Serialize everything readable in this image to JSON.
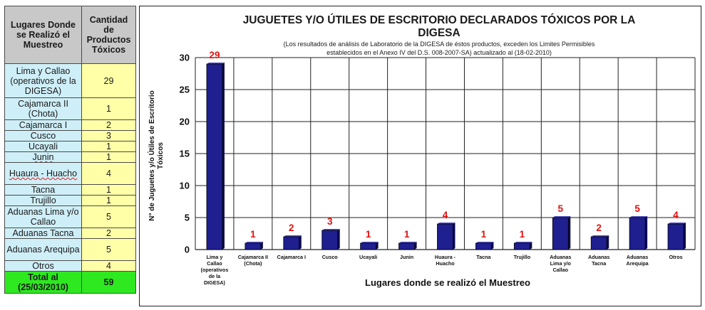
{
  "table": {
    "header_place": "Lugares Donde se Realizó el Muestreo",
    "header_qty": "Cantidad de Productos Tóxicos",
    "rows": [
      {
        "place": "Lima y Callao (operativos de la DIGESA)",
        "qty": "29"
      },
      {
        "place": "Cajamarca II (Chota)",
        "qty": "1"
      },
      {
        "place": "Cajamarca I",
        "qty": "2"
      },
      {
        "place": "Cusco",
        "qty": "3"
      },
      {
        "place": "Ucayali",
        "qty": "1"
      },
      {
        "place": "Junin",
        "qty": "1"
      },
      {
        "place": "Huaura - Huacho",
        "qty": "4"
      },
      {
        "place": "Tacna",
        "qty": "1"
      },
      {
        "place": "Trujillo",
        "qty": "1"
      },
      {
        "place": "Aduanas Lima y/o Callao",
        "qty": "5"
      },
      {
        "place": "Aduanas Tacna",
        "qty": "2"
      },
      {
        "place": "Aduanas Arequipa",
        "qty": "5"
      },
      {
        "place": "Otros",
        "qty": "4"
      }
    ],
    "total_label": "Total al (25/03/2010)",
    "total_value": "59"
  },
  "colors": {
    "header_bg": "#c8c8c8",
    "place_bg": "#cfeff8",
    "qty_bg": "#ffffa8",
    "total_bg": "#2ee820",
    "bar_fill": "#1f1f8f",
    "data_label": "#e01010"
  },
  "chart_data": {
    "type": "bar",
    "title_line1": "JUGUETES Y/O ÚTILES DE ESCRITORIO DECLARADOS TÓXICOS POR LA",
    "title_line2": "DIGESA",
    "subtitle_line1": "(Los resultados de análisis de Laboratorio de la DIGESA de éstos productos, exceden los Limites Permisibles",
    "subtitle_line2": "establecidos en el Anexo IV del D.S. 008-2007-SA) actualizado al (18-02-2010)",
    "xlabel": "Lugares donde se realizó el Muestreo",
    "ylabel_line1": "N° de Juguetes y/o Útiles de Escritorio",
    "ylabel_line2": "Tóxicos",
    "ylim": [
      0,
      30
    ],
    "yticks": [
      0,
      5,
      10,
      15,
      20,
      25,
      30
    ],
    "grid": true,
    "categories": [
      [
        "Lima y",
        "Callao",
        "(operativos",
        "de la",
        "DIGESA)"
      ],
      [
        "Cajamarca II",
        "(Chota)"
      ],
      [
        "Cajamarca I"
      ],
      [
        "Cusco"
      ],
      [
        "Ucayali"
      ],
      [
        "Junin"
      ],
      [
        "Huaura -",
        "Huacho"
      ],
      [
        "Tacna"
      ],
      [
        "Trujillo"
      ],
      [
        "Aduanas",
        "Lima y/o",
        "Callao"
      ],
      [
        "Aduanas",
        "Tacna"
      ],
      [
        "Aduanas",
        "Arequipa"
      ],
      [
        "Otros"
      ]
    ],
    "values": [
      29,
      1,
      2,
      3,
      1,
      1,
      4,
      1,
      1,
      5,
      2,
      5,
      4
    ]
  }
}
